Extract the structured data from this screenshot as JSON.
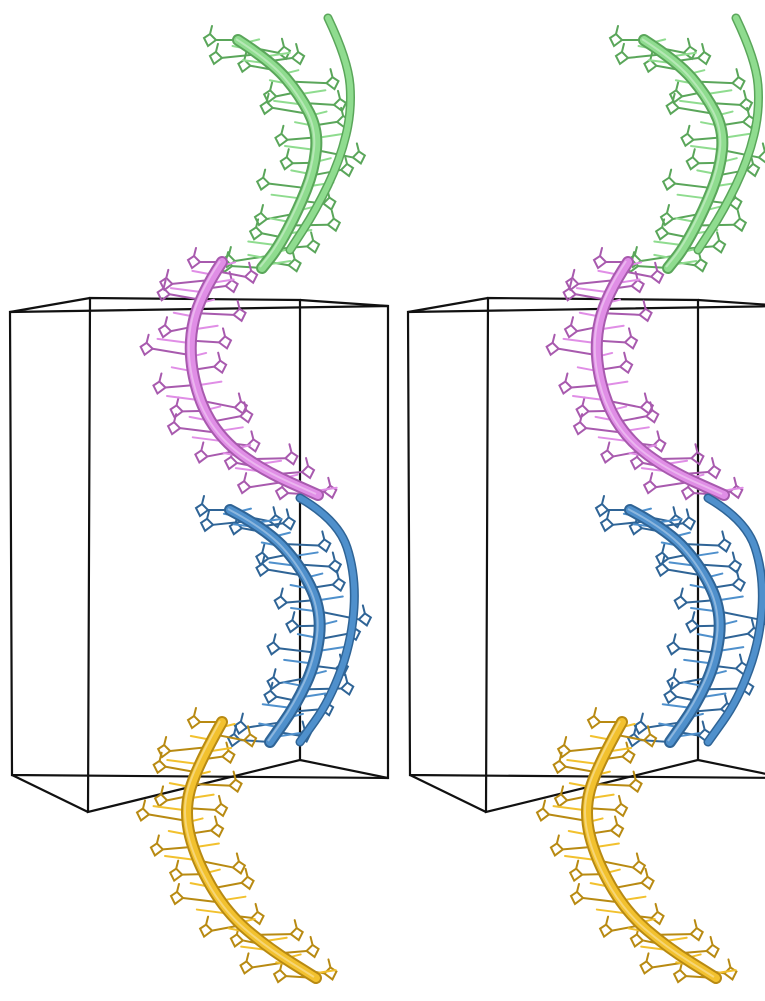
{
  "figure": {
    "view_count": 2,
    "segments": [
      {
        "name": "segment-1",
        "color": "#8fdc8f",
        "dark": "#5aa65a"
      },
      {
        "name": "segment-2",
        "color": "#e08ee6",
        "dark": "#a85aae"
      },
      {
        "name": "segment-3",
        "color": "#4f90cc",
        "dark": "#2f6496"
      },
      {
        "name": "segment-4",
        "color": "#f2c12e",
        "dark": "#b88a12"
      }
    ],
    "box_color": "#111111"
  }
}
